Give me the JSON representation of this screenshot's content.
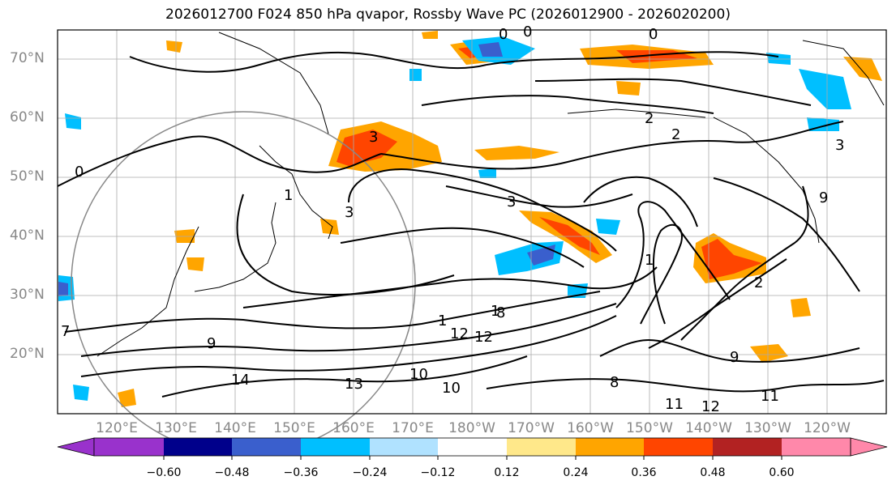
{
  "title": "2026012700 F024 850 hPa qvapor, Rossby Wave PC (2026012900 - 2026020200)",
  "lat_labels": [
    "70°N",
    "60°N",
    "50°N",
    "40°N",
    "30°N",
    "20°N"
  ],
  "lon_labels": [
    "120°E",
    "130°E",
    "140°E",
    "150°E",
    "160°E",
    "170°E",
    "180°W",
    "170°W",
    "160°W",
    "150°W",
    "140°W",
    "130°W",
    "120°W"
  ],
  "colorbar": {
    "colors": [
      "#9932cc",
      "#00008b",
      "#3a5fcd",
      "#00bfff",
      "#b0e2ff",
      "#ffffff",
      "#ffe88a",
      "#ffa500",
      "#ff4500",
      "#b22222",
      "#ff88aa"
    ],
    "tick_labels": [
      "−0.60",
      "−0.48",
      "−0.36",
      "−0.24",
      "−0.12",
      "0.12",
      "0.24",
      "0.36",
      "0.48",
      "0.60"
    ]
  },
  "contour_labels": [
    "0",
    "0",
    "0",
    "0",
    "1",
    "1",
    "1",
    "2",
    "2",
    "2",
    "3",
    "3",
    "3",
    "3",
    "1",
    "7",
    "8",
    "9",
    "10",
    "10",
    "11",
    "12",
    "12",
    "13",
    "14",
    "11",
    "12",
    "8",
    "9",
    "9"
  ],
  "colors": {
    "contour": "#000000",
    "grid": "#aaaaaa",
    "coast": "#000000",
    "axis_label": "#888888"
  }
}
